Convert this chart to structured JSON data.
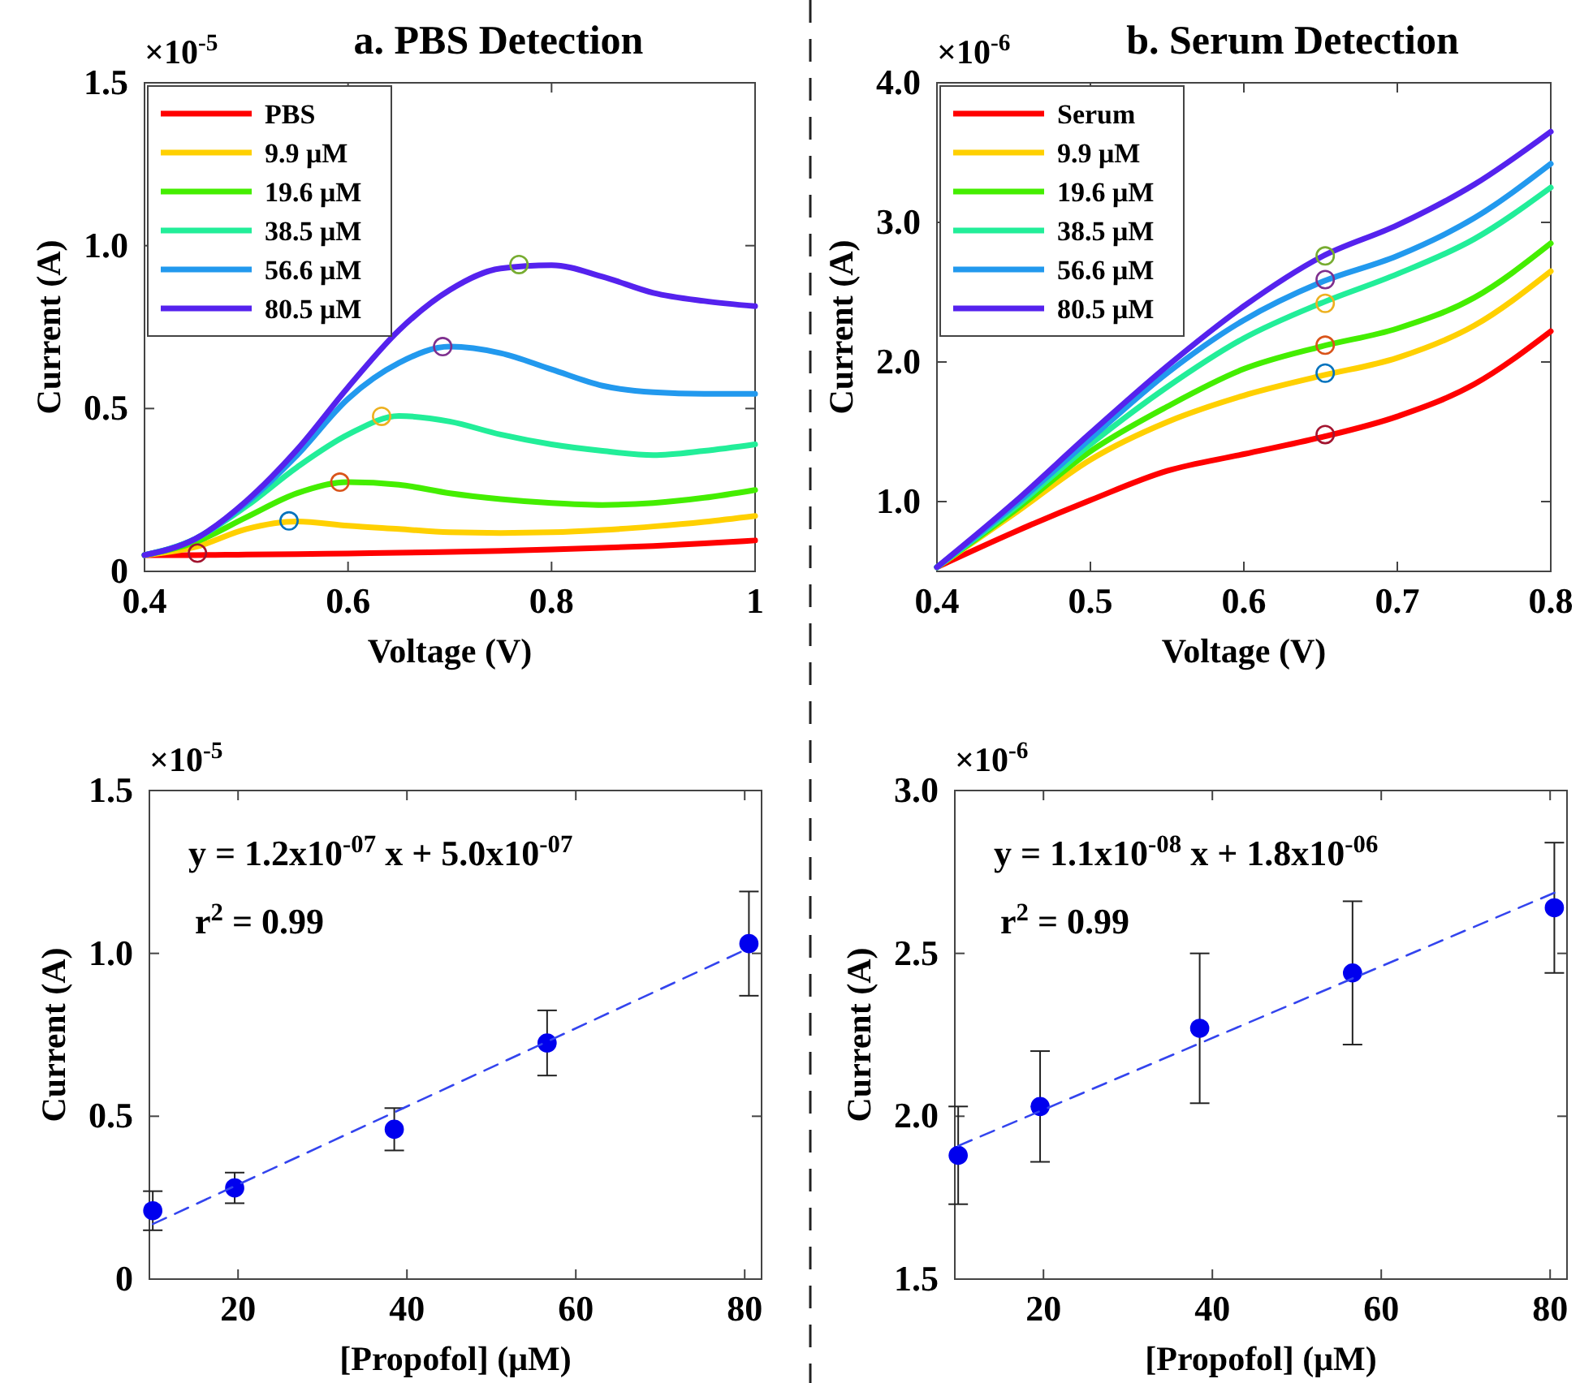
{
  "chart_data": [
    {
      "type": "line",
      "title": "a. PBS Detection",
      "xlabel": "Voltage (V)",
      "ylabel": "Current (A)",
      "annotations": [
        "×10$^{-5}$"
      ],
      "xlim": [
        0.4,
        1
      ],
      "xticks": [
        0.4,
        0.6,
        0.8,
        1
      ],
      "ylim": [
        0,
        1.5
      ],
      "yticks": [
        0,
        0.5,
        {
          "value": 1,
          "label": "1.0"
        },
        1.5
      ],
      "legend": "top left",
      "x": [
        0.4,
        0.45,
        0.5,
        0.55,
        0.6,
        0.65,
        0.7,
        0.75,
        0.8,
        0.85,
        0.9,
        0.95,
        1.0
      ],
      "series": [
        {
          "name": "PBS",
          "color": "#ff0000",
          "values": [
            0.05,
            0.05,
            0.052,
            0.053,
            0.055,
            0.057,
            0.06,
            0.063,
            0.067,
            0.072,
            0.078,
            0.086,
            0.095
          ]
        },
        {
          "name": "9.9 μM",
          "color": "#ffd000",
          "values": [
            0.05,
            0.075,
            0.13,
            0.153,
            0.14,
            0.13,
            0.12,
            0.118,
            0.12,
            0.127,
            0.138,
            0.152,
            0.17
          ]
        },
        {
          "name": "19.6 μM",
          "color": "#44ee00",
          "values": [
            0.05,
            0.09,
            0.166,
            0.24,
            0.274,
            0.266,
            0.24,
            0.222,
            0.21,
            0.204,
            0.21,
            0.226,
            0.25
          ]
        },
        {
          "name": "38.5 μM",
          "color": "#22ee99",
          "values": [
            0.05,
            0.1,
            0.2,
            0.32,
            0.42,
            0.477,
            0.46,
            0.42,
            0.39,
            0.37,
            0.357,
            0.37,
            0.39
          ]
        },
        {
          "name": "56.6 μM",
          "color": "#2299ee",
          "values": [
            0.05,
            0.1,
            0.21,
            0.357,
            0.53,
            0.64,
            0.69,
            0.67,
            0.62,
            0.57,
            0.55,
            0.545,
            0.545
          ]
        },
        {
          "name": "80.5 μM",
          "color": "#5522ee",
          "values": [
            0.05,
            0.1,
            0.216,
            0.374,
            0.565,
            0.74,
            0.864,
            0.93,
            0.94,
            0.905,
            0.855,
            0.83,
            0.814
          ]
        },
        {
          "type": "scatter",
          "marker": "circle",
          "x": [
            0.452,
            0.542,
            0.592,
            0.633,
            0.693,
            0.768
          ],
          "values": [
            0.056,
            0.155,
            0.274,
            0.476,
            0.69,
            0.942
          ],
          "colors": [
            "#a2142f",
            "#0072bd",
            "#d95319",
            "#edb120",
            "#7e2f8e",
            "#77ac30"
          ]
        }
      ]
    },
    {
      "type": "line",
      "title": "b. Serum Detection",
      "xlabel": "Voltage (V)",
      "ylabel": "Current (A)",
      "annotations": [
        "×10$^{-6}$"
      ],
      "xlim": [
        0.4,
        0.8
      ],
      "xticks": [
        0.4,
        0.5,
        0.6,
        0.7,
        0.8
      ],
      "ylim": [
        0.5,
        4
      ],
      "yticks": [
        {
          "value": 1,
          "label": "1.0"
        },
        {
          "value": 2,
          "label": "2.0"
        },
        {
          "value": 3,
          "label": "3.0"
        },
        {
          "value": 4,
          "label": "4.0"
        }
      ],
      "legend": "top left",
      "x": [
        0.4,
        0.45,
        0.5,
        0.55,
        0.6,
        0.65,
        0.7,
        0.75,
        0.8
      ],
      "series": [
        {
          "name": "Serum",
          "color": "#ff0000",
          "values": [
            0.53,
            0.78,
            1.01,
            1.22,
            1.34,
            1.46,
            1.61,
            1.84,
            2.22
          ]
        },
        {
          "name": "9.9 μM",
          "color": "#ffd000",
          "values": [
            0.53,
            0.91,
            1.3,
            1.57,
            1.76,
            1.9,
            2.03,
            2.26,
            2.65
          ]
        },
        {
          "name": "19.6 μM",
          "color": "#44ee00",
          "values": [
            0.53,
            0.93,
            1.36,
            1.68,
            1.95,
            2.11,
            2.24,
            2.46,
            2.85
          ]
        },
        {
          "name": "38.5 μM",
          "color": "#22ee99",
          "values": [
            0.53,
            0.95,
            1.41,
            1.82,
            2.17,
            2.42,
            2.63,
            2.88,
            3.25
          ]
        },
        {
          "name": "56.6 μM",
          "color": "#2299ee",
          "values": [
            0.53,
            0.97,
            1.45,
            1.92,
            2.3,
            2.57,
            2.76,
            3.03,
            3.42
          ]
        },
        {
          "name": "80.5 μM",
          "color": "#5522ee",
          "values": [
            0.53,
            0.99,
            1.49,
            1.97,
            2.4,
            2.75,
            2.98,
            3.27,
            3.65
          ]
        },
        {
          "type": "scatter",
          "marker": "circle",
          "x": [
            0.653,
            0.653,
            0.653,
            0.653,
            0.653,
            0.653
          ],
          "values": [
            2.76,
            2.59,
            2.42,
            2.12,
            1.92,
            1.48
          ],
          "colors": [
            "#77ac30",
            "#7e2f8e",
            "#edb120",
            "#d95319",
            "#0072bd",
            "#a2142f"
          ]
        }
      ]
    },
    {
      "type": "scatter",
      "xlabel": "[Propofol] (μM)",
      "ylabel": "Current (A)",
      "annotations": [
        "×10$^{-5}$",
        "y = 1.2x10$^{-07}$ x + 5.0x10$^{-07}$",
        "r$^{2}$ = 0.99"
      ],
      "xlim": [
        9.5,
        82
      ],
      "xticks": [
        20,
        40,
        60,
        80
      ],
      "ylim": [
        0,
        1.5
      ],
      "yticks": [
        0,
        0.5,
        {
          "value": 1,
          "label": "1.0"
        },
        1.5
      ],
      "series": [
        {
          "color": "#0000ee",
          "marker": "circle",
          "x": [
            9.9,
            19.6,
            38.5,
            56.6,
            80.5
          ],
          "values": [
            0.21,
            0.28,
            0.46,
            0.725,
            1.03
          ],
          "errors": [
            0.06,
            0.047,
            0.065,
            0.1,
            0.16
          ]
        },
        {
          "type": "line",
          "color": "#3344ee",
          "line_style": "dashed",
          "x": [
            9.9,
            80.5
          ],
          "values": [
            0.169,
            1.016
          ]
        }
      ]
    },
    {
      "type": "scatter",
      "xlabel": "[Propofol] (μM)",
      "ylabel": "Current (A)",
      "annotations": [
        "×10$^{-6}$",
        "y = 1.1x10$^{-08}$ x + 1.8x10$^{-06}$",
        "r$^{2}$ = 0.99"
      ],
      "xlim": [
        9.5,
        82
      ],
      "xticks": [
        20,
        40,
        60,
        80
      ],
      "ylim": [
        1.5,
        3
      ],
      "yticks": [
        1.5,
        {
          "value": 2,
          "label": "2.0"
        },
        2.5,
        {
          "value": 3,
          "label": "3.0"
        }
      ],
      "series": [
        {
          "color": "#0000ee",
          "marker": "circle",
          "x": [
            9.9,
            19.6,
            38.5,
            56.6,
            80.5
          ],
          "values": [
            1.88,
            2.03,
            2.27,
            2.44,
            2.64
          ],
          "errors": [
            0.15,
            0.17,
            0.23,
            0.22,
            0.2
          ]
        },
        {
          "type": "line",
          "color": "#3344ee",
          "line_style": "dashed",
          "x": [
            9.9,
            80.5
          ],
          "values": [
            1.909,
            2.686
          ]
        }
      ]
    }
  ]
}
